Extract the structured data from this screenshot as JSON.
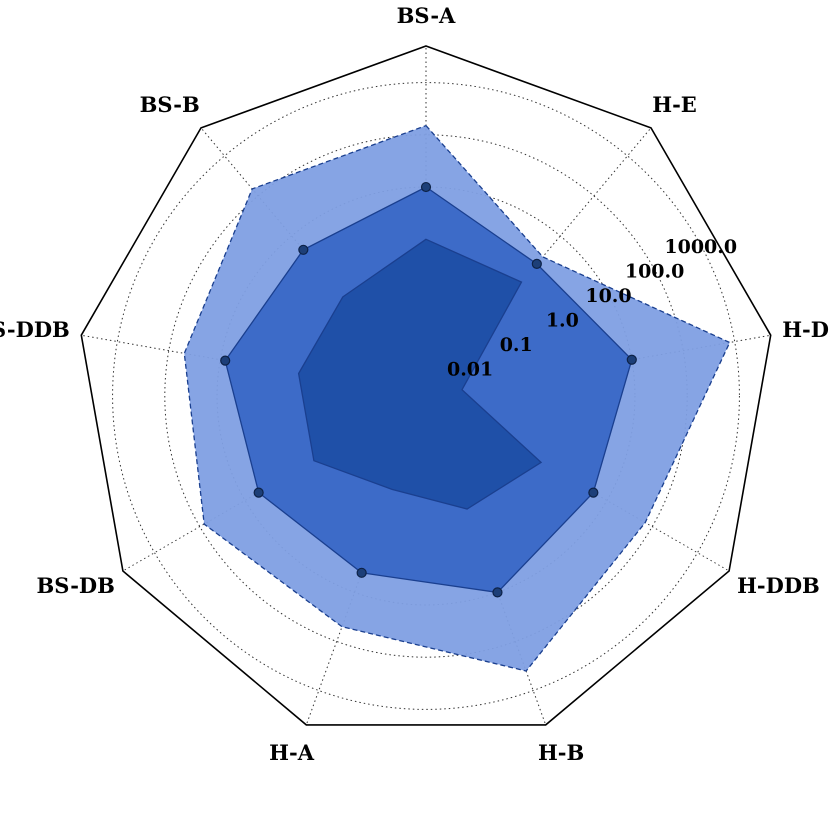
{
  "chart_data": {
    "type": "radar",
    "axes": [
      "BS-A",
      "H-E",
      "H-DB",
      "H-DDB",
      "H-B",
      "H-A",
      "BS-DB",
      "BS-DDB",
      "BS-B"
    ],
    "radial_scale": "log",
    "radial_ticks": [
      "0.01",
      "0.1",
      "1.0",
      "10.0",
      "100.0",
      "1000.0"
    ],
    "grid": true,
    "series": [
      {
        "values": [
          1.0,
          0.7,
          0.005,
          0.35,
          0.2,
          0.08,
          0.3,
          0.3,
          0.3
        ],
        "color": "#1f50a8"
      },
      {
        "values": [
          10.0,
          2.0,
          10.0,
          5.0,
          10.0,
          4.0,
          5.0,
          8.0,
          4.5
        ],
        "color": "#3d6bc8",
        "markers": true
      },
      {
        "values": [
          150.0,
          3.0,
          800.0,
          70.0,
          400.0,
          50.0,
          80.0,
          50.0,
          150.0
        ],
        "color": "#7f9fe3"
      }
    ]
  }
}
